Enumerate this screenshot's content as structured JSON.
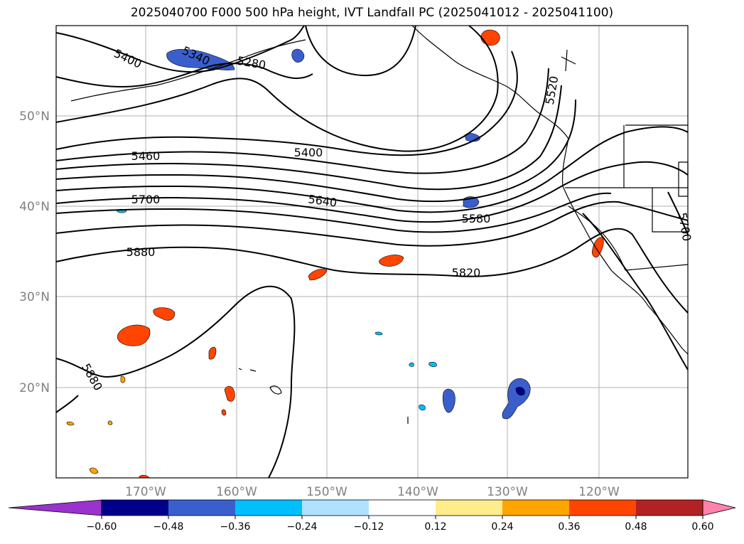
{
  "title": "2025040700 F000 500 hPa height, IVT Landfall PC (2025041012 - 2025041100)",
  "lat_labels": [
    "50°N",
    "40°N",
    "30°N",
    "20°N"
  ],
  "lon_labels": [
    "170°W",
    "160°W",
    "150°W",
    "140°W",
    "130°W",
    "120°W"
  ],
  "contour_labels": [
    "5400",
    "5340",
    "5280",
    "5460",
    "5400",
    "5700",
    "5640",
    "5580",
    "5880",
    "5820",
    "5880",
    "5520",
    "5700"
  ],
  "colorbar": {
    "ticks": [
      "−0.60",
      "−0.48",
      "−0.36",
      "−0.24",
      "−0.12",
      "0.12",
      "0.24",
      "0.36",
      "0.48",
      "0.60"
    ],
    "colors": [
      "#9a32cd",
      "#00008b",
      "#3a5fcd",
      "#00bfff",
      "#b0e2ff",
      "#ffffff",
      "#ffec8b",
      "#ffa500",
      "#ff4500",
      "#b22222",
      "#ff82ab"
    ]
  }
}
